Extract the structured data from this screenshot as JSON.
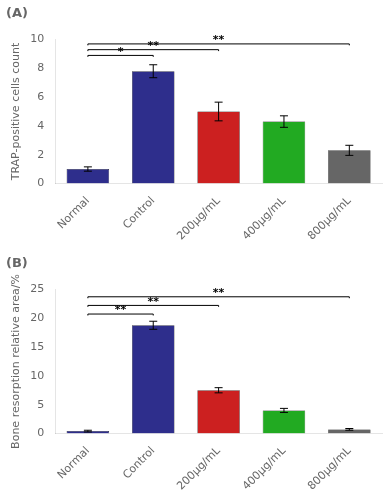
{
  "chart_data": [
    {
      "type": "bar",
      "title": "(A)",
      "categories": [
        "Normal",
        "Control",
        "200μg/mL",
        "400μg/mL",
        "800μg/mL"
      ],
      "values": [
        1.0,
        7.8,
        5.0,
        4.3,
        2.3
      ],
      "errors": [
        0.15,
        0.45,
        0.65,
        0.4,
        0.35
      ],
      "colors": [
        "#2e2e8c",
        "#2e2e8c",
        "#cc2020",
        "#22aa22",
        "#666666"
      ],
      "ylabel": "TRAP-positive cells count",
      "ylim": [
        0,
        10
      ],
      "yticks": [
        0,
        2,
        4,
        6,
        8,
        10
      ],
      "grid": false,
      "annotations": [
        {
          "from": "Normal",
          "to": "Control",
          "y": 8.8,
          "label": "*"
        },
        {
          "from": "Normal",
          "to": "200μg/mL",
          "y": 9.2,
          "label": "**"
        },
        {
          "from": "Normal",
          "to": "800μg/mL",
          "y": 9.6,
          "label": "**"
        }
      ]
    },
    {
      "type": "bar",
      "title": "(B)",
      "categories": [
        "Normal",
        "Control",
        "200μg/mL",
        "400μg/mL",
        "800μg/mL"
      ],
      "values": [
        0.4,
        18.8,
        7.5,
        4.0,
        0.7
      ],
      "errors": [
        0.15,
        0.7,
        0.45,
        0.35,
        0.15
      ],
      "colors": [
        "#2e2e8c",
        "#2e2e8c",
        "#cc2020",
        "#22aa22",
        "#666666"
      ],
      "ylabel": "Bone resorption relative area/%",
      "ylim": [
        0,
        25
      ],
      "yticks": [
        0,
        5,
        10,
        15,
        20,
        25
      ],
      "grid": false,
      "annotations": [
        {
          "from": "Normal",
          "to": "Control",
          "y": 20.5,
          "label": "**"
        },
        {
          "from": "Normal",
          "to": "200μg/mL",
          "y": 22.0,
          "label": "**"
        },
        {
          "from": "Normal",
          "to": "800μg/mL",
          "y": 23.5,
          "label": "**"
        }
      ]
    }
  ]
}
